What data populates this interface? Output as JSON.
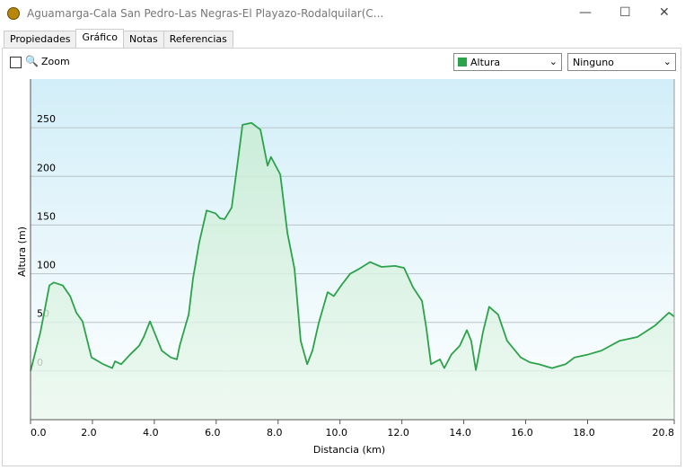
{
  "window": {
    "title": "Aguamarga-Cala San Pedro-Las Negras-El Playazo-Rodalquilar(C...",
    "tabs": [
      "Propiedades",
      "Gráfico",
      "Notas",
      "Referencias"
    ],
    "zoom_label": "Zoom",
    "second_select": "Ninguno"
  },
  "chart_data": {
    "type": "line",
    "xlabel": "Distancia  (km)",
    "ylabel": "Altura (m)",
    "x": [
      0,
      0.32,
      0.61,
      0.75,
      1.04,
      1.28,
      1.48,
      1.68,
      1.97,
      2.35,
      2.64,
      2.73,
      2.93,
      3.22,
      3.51,
      3.66,
      3.86,
      4.0,
      4.24,
      4.53,
      4.73,
      4.82,
      5.11,
      5.25,
      5.45,
      5.69,
      5.98,
      6.12,
      6.27,
      6.5,
      6.7,
      6.85,
      7.14,
      7.43,
      7.66,
      7.77,
      8.07,
      8.3,
      8.53,
      8.73,
      8.94,
      9.11,
      9.31,
      9.6,
      9.8,
      10.04,
      10.33,
      10.62,
      10.97,
      11.34,
      11.78,
      12.07,
      12.36,
      12.65,
      12.79,
      12.94,
      13.23,
      13.37,
      13.6,
      13.87,
      14.1,
      14.24,
      14.39,
      14.62,
      14.82,
      15.11,
      15.4,
      15.84,
      16.13,
      16.42,
      16.85,
      17.29,
      17.58,
      18.02,
      18.45,
      19.03,
      19.61,
      20.19,
      20.63,
      20.8
    ],
    "series": [
      {
        "name": "Altura",
        "color": "#2ca24a",
        "values": [
          0,
          40,
          88,
          91,
          88,
          77,
          60,
          51,
          14,
          7,
          3,
          10,
          7,
          17,
          26,
          35,
          51,
          40,
          21,
          14,
          12,
          26,
          58,
          95,
          132,
          165,
          162,
          157,
          156,
          168,
          216,
          253,
          255,
          248,
          211,
          220,
          202,
          142,
          105,
          31,
          7,
          21,
          49,
          81,
          77,
          88,
          100,
          105,
          112,
          107,
          108,
          106,
          86,
          72,
          44,
          7,
          12,
          3,
          17,
          26,
          42,
          31,
          1,
          40,
          66,
          58,
          31,
          14,
          9,
          7,
          3,
          7,
          14,
          17,
          21,
          31,
          35,
          47,
          60,
          56
        ]
      }
    ],
    "xlim": [
      0,
      20.8
    ],
    "xticks": [
      {
        "value": 0,
        "label": "0.0"
      },
      {
        "value": 2,
        "label": "2.0"
      },
      {
        "value": 4,
        "label": "4.0"
      },
      {
        "value": 6,
        "label": "6.0"
      },
      {
        "value": 8,
        "label": "8.0"
      },
      {
        "value": 10,
        "label": "10.0"
      },
      {
        "value": 12,
        "label": "12.0"
      },
      {
        "value": 14,
        "label": "14.0"
      },
      {
        "value": 16,
        "label": "16.0"
      },
      {
        "value": 18,
        "label": "18.0"
      },
      {
        "value": 20.8,
        "label": "20.8"
      }
    ],
    "ylim": [
      -50,
      300
    ],
    "yticks": [
      0,
      50,
      100,
      150,
      200,
      250
    ],
    "grid": true
  }
}
